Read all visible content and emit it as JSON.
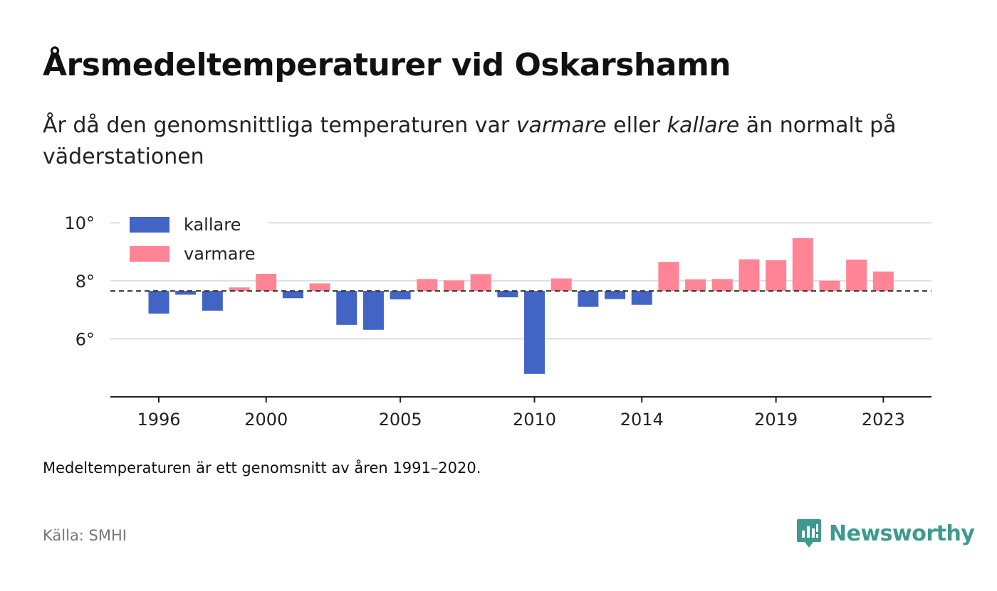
{
  "header": {
    "title": "Årsmedeltemperaturer vid Oskarshamn",
    "subtitle_part1": "År då den genomsnittliga temperaturen var ",
    "subtitle_em1": "varmare",
    "subtitle_part2": " eller ",
    "subtitle_em2": "kallare",
    "subtitle_part3": " än normalt på väderstationen"
  },
  "footer": {
    "note": "Medeltemperaturen är ett genomsnitt av åren 1991–2020.",
    "source": "Källa: SMHI",
    "brand": "Newsworthy"
  },
  "colors": {
    "cold": "#4264c4",
    "warm": "#ff8496",
    "brand": "#3d9a90"
  },
  "chart_data": {
    "type": "bar",
    "baseline": 7.65,
    "ylim": [
      4.0,
      10.4
    ],
    "y_ticks": [
      6,
      8,
      10
    ],
    "y_tick_labels": [
      "6°",
      "8°",
      "10°"
    ],
    "x_ticks": [
      1996,
      2000,
      2005,
      2010,
      2014,
      2019,
      2023
    ],
    "x_tick_labels": [
      "1996",
      "2000",
      "2005",
      "2010",
      "2014",
      "2019",
      "2023"
    ],
    "legend": [
      {
        "key": "cold",
        "label": "kallare"
      },
      {
        "key": "warm",
        "label": "varmare"
      }
    ],
    "legend_position": "top-left",
    "grid": true,
    "years": [
      1996,
      1997,
      1998,
      1999,
      2000,
      2001,
      2002,
      2003,
      2004,
      2005,
      2006,
      2007,
      2008,
      2009,
      2010,
      2011,
      2012,
      2013,
      2014,
      2015,
      2016,
      2017,
      2018,
      2019,
      2020,
      2021,
      2022,
      2023
    ],
    "values": [
      6.87,
      7.52,
      6.97,
      7.77,
      8.24,
      7.4,
      7.91,
      6.48,
      6.31,
      7.36,
      8.06,
      8.01,
      8.23,
      7.43,
      4.79,
      8.08,
      7.1,
      7.37,
      7.17,
      8.65,
      8.05,
      8.06,
      8.74,
      8.71,
      9.47,
      8.0,
      8.73,
      8.32
    ]
  }
}
